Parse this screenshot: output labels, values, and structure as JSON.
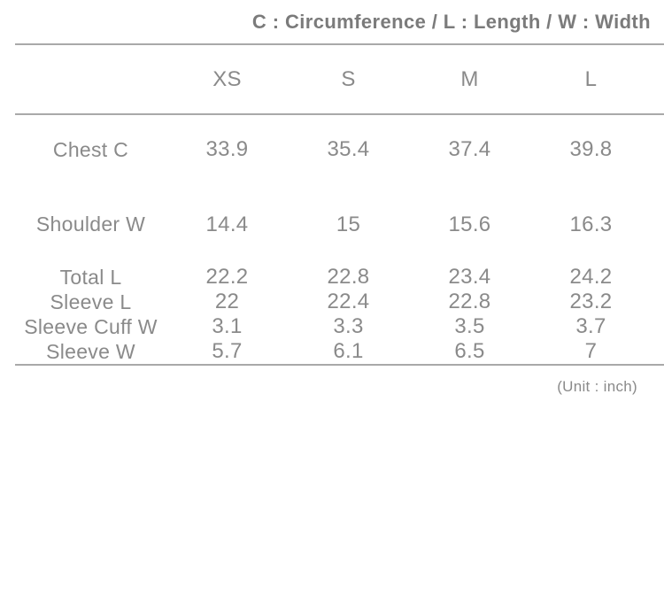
{
  "colors": {
    "background": "#ffffff",
    "title_text": "#7b7b7b",
    "body_text": "#8a8a8a",
    "divider": "#a9a9a9"
  },
  "chart_data": {
    "type": "table",
    "title": "C : Circumference / L : Length / W : Width",
    "unit_note": "(Unit : inch)",
    "columns": [
      "",
      "XS",
      "S",
      "M",
      "L"
    ],
    "rows": [
      {
        "label": "Chest C",
        "values": [
          "33.9",
          "35.4",
          "37.4",
          "39.8"
        ]
      },
      {
        "label": "Shoulder W",
        "values": [
          "14.4",
          "15",
          "15.6",
          "16.3"
        ]
      },
      {
        "label": "Total L",
        "values": [
          "22.2",
          "22.8",
          "23.4",
          "24.2"
        ]
      },
      {
        "label": "Sleeve L",
        "values": [
          "22",
          "22.4",
          "22.8",
          "23.2"
        ]
      },
      {
        "label": "Sleeve Cuff W",
        "values": [
          "3.1",
          "3.3",
          "3.5",
          "3.7"
        ]
      },
      {
        "label": "Sleeve W",
        "values": [
          "5.7",
          "6.1",
          "6.5",
          "7"
        ]
      }
    ]
  }
}
